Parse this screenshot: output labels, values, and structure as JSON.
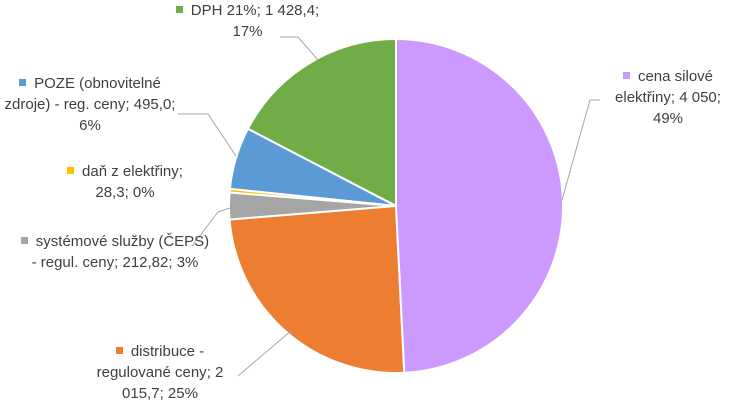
{
  "chart_data": {
    "type": "pie",
    "categories": [
      "cena silové elektřiny",
      "distribuce - regulované ceny",
      "systémové služby (ČEPS) - regul. ceny",
      "daň z elektřiny",
      "POZE (obnovitelné zdroje) - reg. ceny",
      "DPH 21%"
    ],
    "values": [
      4050,
      2015.7,
      212.82,
      28.3,
      495.0,
      1428.4
    ],
    "value_labels": [
      "4 050",
      "2 015,7",
      "212,82",
      "28,3",
      "495,0",
      "1 428,4"
    ],
    "percentage_labels": [
      "49%",
      "25%",
      "3%",
      "0%",
      "6%",
      "17%"
    ],
    "label_separator": "; ",
    "colors": [
      "#cc99ff",
      "#ed7d31",
      "#a5a5a5",
      "#ffc000",
      "#5b9bd5",
      "#70ad47"
    ]
  }
}
